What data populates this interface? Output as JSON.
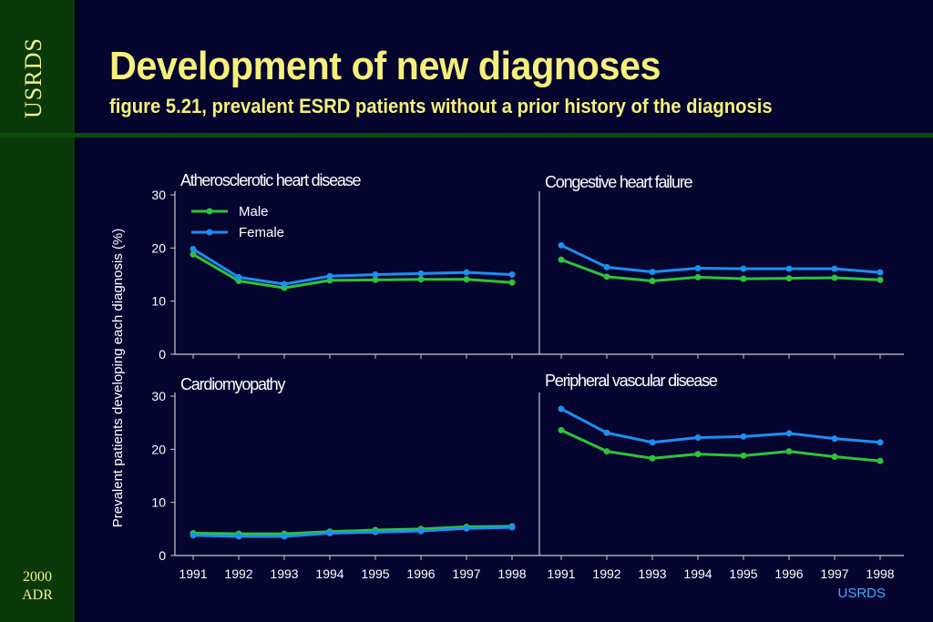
{
  "header": {
    "title": "Development of new diagnoses",
    "subtitle": "figure 5.21, prevalent ESRD patients without a prior history of the diagnosis"
  },
  "sidebar": {
    "brand": "USRDS",
    "edition_year": "2000",
    "edition_label": "ADR"
  },
  "footer": {
    "source": "USRDS"
  },
  "colors": {
    "male": "#2fc23a",
    "female": "#1e8ef0",
    "axis": "#c8c8c8",
    "text": "#ffffff"
  },
  "chart_data": {
    "type": "line",
    "ylabel": "Prevalent patients developing each diagnosis (%)",
    "ylim": [
      0,
      30
    ],
    "yticks": [
      "0",
      "10",
      "20",
      "30"
    ],
    "x": [
      "1991",
      "1992",
      "1993",
      "1994",
      "1995",
      "1996",
      "1997",
      "1998"
    ],
    "legend": {
      "placement": "top-left",
      "entries": [
        "Male",
        "Female"
      ]
    },
    "panels": [
      {
        "title": "Atherosclerotic heart disease",
        "series": [
          {
            "name": "Male",
            "values": [
              18.8,
              13.8,
              12.5,
              13.9,
              14.0,
              14.1,
              14.1,
              13.5
            ]
          },
          {
            "name": "Female",
            "values": [
              19.8,
              14.5,
              13.2,
              14.7,
              15.0,
              15.2,
              15.4,
              15.0
            ]
          }
        ]
      },
      {
        "title": "Congestive heart failure",
        "series": [
          {
            "name": "Male",
            "values": [
              17.8,
              14.6,
              13.8,
              14.5,
              14.2,
              14.3,
              14.4,
              14.0
            ]
          },
          {
            "name": "Female",
            "values": [
              20.5,
              16.4,
              15.5,
              16.2,
              16.1,
              16.1,
              16.1,
              15.4
            ]
          }
        ]
      },
      {
        "title": "Cardiomyopathy",
        "series": [
          {
            "name": "Male",
            "values": [
              4.2,
              4.1,
              4.1,
              4.5,
              4.8,
              5.0,
              5.4,
              5.5
            ]
          },
          {
            "name": "Female",
            "values": [
              3.8,
              3.6,
              3.6,
              4.2,
              4.4,
              4.6,
              5.1,
              5.3
            ]
          }
        ]
      },
      {
        "title": "Peripheral vascular disease",
        "series": [
          {
            "name": "Male",
            "values": [
              23.6,
              19.6,
              18.3,
              19.1,
              18.8,
              19.6,
              18.6,
              17.8
            ]
          },
          {
            "name": "Female",
            "values": [
              27.6,
              23.1,
              21.3,
              22.2,
              22.4,
              23.0,
              22.0,
              21.3
            ]
          }
        ]
      }
    ]
  }
}
